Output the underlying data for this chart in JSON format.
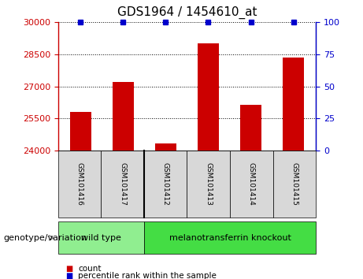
{
  "title": "GDS1964 / 1454610_at",
  "samples": [
    "GSM101416",
    "GSM101417",
    "GSM101412",
    "GSM101413",
    "GSM101414",
    "GSM101415"
  ],
  "count_values": [
    25800,
    27200,
    24350,
    29000,
    26150,
    28350
  ],
  "ylim_left": [
    24000,
    30000
  ],
  "ylim_right": [
    0,
    100
  ],
  "yticks_left": [
    24000,
    25500,
    27000,
    28500,
    30000
  ],
  "yticks_right": [
    0,
    25,
    50,
    75,
    100
  ],
  "bar_color": "#cc0000",
  "percentile_color": "#0000cc",
  "bg_color": "#d8d8d8",
  "wild_type_label": "wild type",
  "knockout_label": "melanotransferrin knockout",
  "group_label": "genotype/variation",
  "legend_count": "count",
  "legend_percentile": "percentile rank within the sample",
  "wild_type_color": "#90ee90",
  "knockout_color": "#44dd44",
  "left_tick_color": "#cc0000",
  "right_tick_color": "#0000cc"
}
